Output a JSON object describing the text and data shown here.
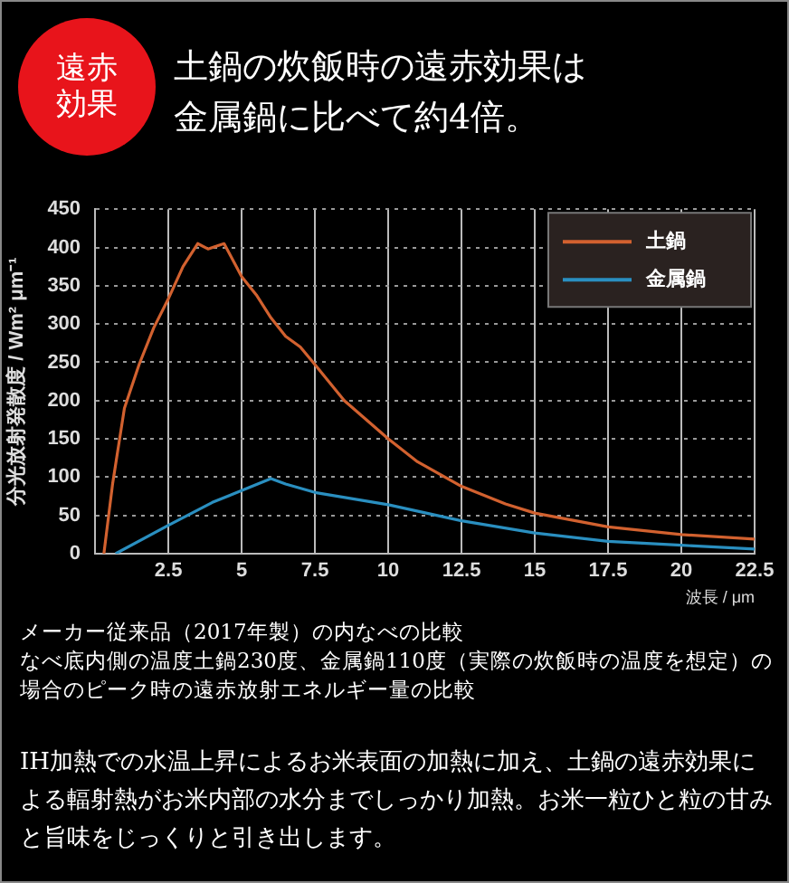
{
  "chart_data": {
    "type": "line",
    "title": "土鍋の炊飯時の遠赤効果は金属鍋に比べて約4倍。",
    "xlabel": "波長 / μm",
    "ylabel": "分光放射発散度 / Wm² μm⁻¹",
    "annotations": [
      "遠赤効果",
      "メーカー従来品（2017年製）の内なべの比較",
      "なべ底内側の温度土鍋230度、金属鍋110度（実際の炊飯時の温度を想定）の場合のピーク時の遠赤放射エネルギー量の比較",
      "IH加熱での水温上昇によるお米表面の加熱に加え、土鍋の遠赤効果による輻射熱がお米内部の水分までしっかり加熱。お米一粒ひと粒の甘みと旨味をじっくりと引き出します。"
    ],
    "series": [
      {
        "name": "土鍋",
        "color": "#d2612f",
        "x": [
          0.3,
          0.6,
          1,
          1.5,
          2,
          2.5,
          3,
          3.5,
          3.85,
          4.4,
          5,
          5.5,
          6,
          6.5,
          7,
          7.5,
          8.5,
          10,
          11,
          12.5,
          14,
          15,
          17.5,
          20,
          22.5
        ],
        "values": [
          0,
          92,
          190,
          247,
          295,
          333,
          375,
          405,
          398,
          405,
          362,
          338,
          308,
          284,
          270,
          247,
          200,
          150,
          120,
          88,
          65,
          53,
          35,
          25,
          19
        ]
      },
      {
        "name": "金属鍋",
        "color": "#2a8fc0",
        "x": [
          0.7,
          2.5,
          4,
          6,
          6.5,
          7.5,
          10,
          12.5,
          15,
          17.5,
          20,
          22.5
        ],
        "values": [
          0,
          37,
          67,
          98,
          91,
          80,
          64,
          43,
          27,
          16,
          11,
          6
        ]
      }
    ],
    "xlim": [
      0,
      22.5
    ],
    "xticks": [
      2.5,
      5,
      7.5,
      10,
      12.5,
      15,
      17.5,
      20,
      22.5
    ],
    "ylim": [
      0,
      450
    ],
    "yticks": [
      0,
      50,
      100,
      150,
      200,
      250,
      300,
      350,
      400,
      450
    ],
    "grid": true,
    "legend": "top right",
    "marker": "none",
    "line_style": "solid"
  }
}
